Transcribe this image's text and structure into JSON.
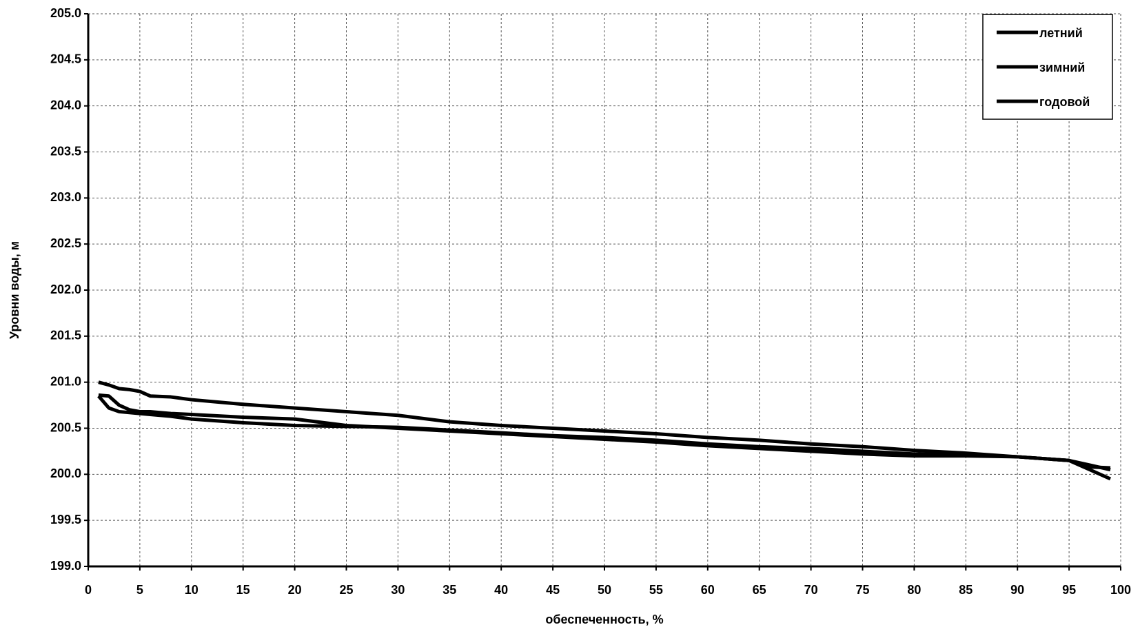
{
  "chart_data": {
    "type": "line",
    "x_label": "обеспеченность, %",
    "y_label": "Уровни воды, м",
    "x": [
      1,
      2,
      3,
      4,
      5,
      6,
      8,
      10,
      15,
      20,
      25,
      30,
      35,
      40,
      45,
      50,
      55,
      60,
      65,
      70,
      75,
      80,
      85,
      90,
      95,
      97,
      99
    ],
    "series": [
      {
        "name": "летний",
        "color": "#000000",
        "values": [
          200.86,
          200.85,
          200.75,
          200.7,
          200.68,
          200.68,
          200.66,
          200.65,
          200.62,
          200.6,
          200.53,
          200.5,
          200.47,
          200.44,
          200.41,
          200.38,
          200.35,
          200.31,
          200.28,
          200.25,
          200.22,
          200.2,
          200.2,
          200.19,
          200.15,
          200.05,
          199.95
        ]
      },
      {
        "name": "зимний",
        "color": "#000000",
        "values": [
          200.85,
          200.72,
          200.68,
          200.67,
          200.66,
          200.65,
          200.63,
          200.6,
          200.56,
          200.53,
          200.52,
          200.51,
          200.48,
          200.45,
          200.42,
          200.4,
          200.37,
          200.33,
          200.3,
          200.28,
          200.25,
          200.22,
          200.21,
          200.19,
          200.15,
          200.1,
          200.05
        ]
      },
      {
        "name": "годовой",
        "color": "#000000",
        "values": [
          201.0,
          200.97,
          200.93,
          200.92,
          200.9,
          200.85,
          200.84,
          200.81,
          200.76,
          200.72,
          200.68,
          200.64,
          200.57,
          200.53,
          200.5,
          200.47,
          200.44,
          200.4,
          200.37,
          200.33,
          200.3,
          200.26,
          200.23,
          200.19,
          200.15,
          200.08,
          200.07
        ]
      }
    ],
    "xlim": [
      0,
      100
    ],
    "xticks": [
      0,
      5,
      10,
      15,
      20,
      25,
      30,
      35,
      40,
      45,
      50,
      55,
      60,
      65,
      70,
      75,
      80,
      85,
      90,
      95,
      100
    ],
    "ylim": [
      199,
      205
    ],
    "yticks": [
      {
        "value": 199,
        "label": "199.0"
      },
      199.5,
      {
        "value": 200,
        "label": "200.0"
      },
      200.5,
      {
        "value": 201,
        "label": "201.0"
      },
      201.5,
      {
        "value": 202,
        "label": "202.0"
      },
      202.5,
      {
        "value": 203,
        "label": "203.0"
      },
      203.5,
      {
        "value": 204,
        "label": "204.0"
      },
      204.5,
      {
        "value": 205,
        "label": "205.0"
      }
    ],
    "grid": true,
    "legend": "top-right"
  }
}
